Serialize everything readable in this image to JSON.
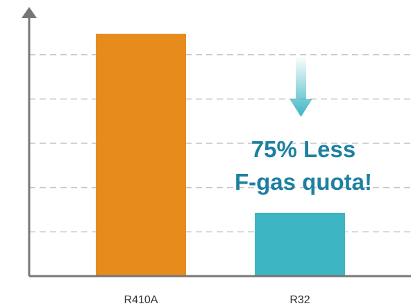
{
  "chart_data": {
    "type": "bar",
    "categories": [
      "R410A",
      "R32"
    ],
    "values": [
      5.47,
      1.43
    ],
    "colors": [
      "#e88b1d",
      "#3db5c3"
    ],
    "ylim": [
      0,
      6
    ],
    "yticks": [
      1,
      2,
      3,
      4,
      5
    ],
    "grid": true,
    "annotation": [
      "75% Less",
      "F-gas quota!"
    ]
  }
}
